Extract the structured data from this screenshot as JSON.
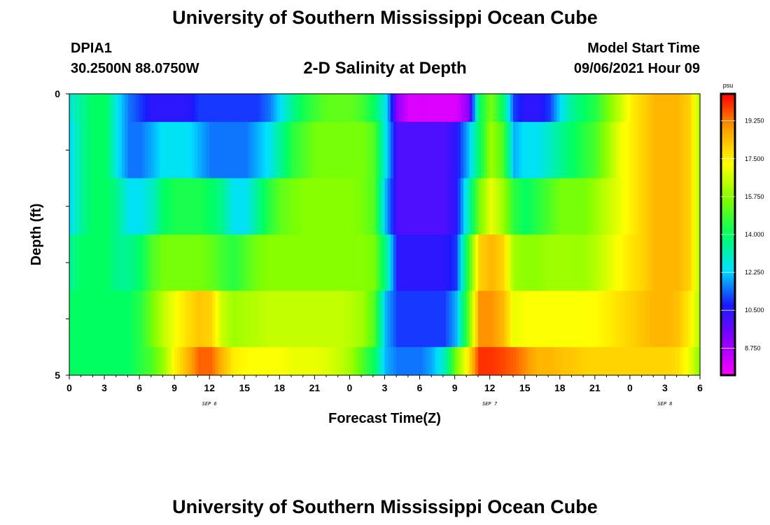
{
  "header": {
    "main_title": "University of Southern Mississippi Ocean Cube",
    "station_id": "DPIA1",
    "station_coords": "30.2500N  88.0750W",
    "plot_title": "2-D Salinity at Depth",
    "model_label": "Model Start Time",
    "model_time": "09/06/2021 Hour 09"
  },
  "footer": {
    "title": "University of Southern Mississippi Ocean Cube"
  },
  "chart_data": {
    "type": "heatmap",
    "xlabel": "Forecast Time(Z)",
    "ylabel": "Depth (ft)",
    "x_tick_labels": [
      "0",
      "3",
      "6",
      "9",
      "12",
      "15",
      "18",
      "21",
      "0",
      "3",
      "6",
      "9",
      "12",
      "15",
      "18",
      "21",
      "0",
      "3",
      "6"
    ],
    "date_labels": [
      {
        "label": "SEP 6",
        "hour": 12
      },
      {
        "label": "SEP 7",
        "hour": 36
      },
      {
        "label": "SEP 8",
        "hour": 51
      }
    ],
    "x_range_hours": [
      0,
      54
    ],
    "y_tick_labels": [
      "0",
      "5"
    ],
    "ylim": [
      0,
      5
    ],
    "unit": "psu",
    "colorbar_ticks": [
      "19.250",
      "17.500",
      "15.750",
      "14.000",
      "12.250",
      "10.500",
      "8.750"
    ],
    "colorbar_values": [
      19.25,
      17.5,
      15.75,
      14.0,
      12.25,
      10.5,
      8.75
    ],
    "value_range": [
      7.5,
      20.5
    ],
    "colormap": [
      "#ff00ff",
      "#8a00ff",
      "#1a1aff",
      "#00e0ff",
      "#00ff60",
      "#80ff00",
      "#ffff00",
      "#ffa000",
      "#ff0000"
    ],
    "hours": [
      0,
      1,
      2,
      3,
      4,
      5,
      6,
      7,
      8,
      9,
      10,
      11,
      12,
      13,
      14,
      15,
      16,
      17,
      18,
      19,
      20,
      21,
      22,
      23,
      24,
      25,
      26,
      27,
      28,
      29,
      30,
      31,
      32,
      33,
      34,
      35,
      36,
      37,
      38,
      39,
      40,
      41,
      42,
      43,
      44,
      45,
      46,
      47,
      48,
      49,
      50,
      51,
      52,
      53,
      54
    ],
    "depth_layers": [
      {
        "depth": 0,
        "values": [
          12.8,
          13.5,
          14.0,
          14.0,
          12.5,
          11.5,
          11.0,
          10.5,
          10.5,
          10.5,
          10.5,
          11.0,
          11.0,
          11.0,
          11.0,
          11.0,
          11.0,
          11.5,
          12.5,
          13.5,
          14.3,
          14.8,
          15.2,
          15.2,
          15.2,
          14.8,
          14.0,
          12.5,
          9.0,
          8.0,
          8.0,
          8.0,
          8.0,
          8.0,
          9.0,
          14.0,
          15.5,
          14.0,
          11.0,
          10.5,
          10.5,
          11.0,
          12.5,
          13.5,
          14.0,
          14.5,
          15.5,
          16.5,
          17.5,
          18.0,
          18.5,
          18.5,
          18.5,
          18.0,
          16.0
        ]
      },
      {
        "depth": 1,
        "values": [
          12.5,
          13.5,
          14.0,
          14.0,
          12.5,
          11.5,
          11.5,
          12.0,
          12.5,
          12.5,
          12.5,
          12.0,
          11.5,
          11.5,
          11.5,
          11.5,
          12.0,
          12.5,
          13.5,
          14.5,
          15.0,
          15.5,
          15.5,
          15.5,
          15.5,
          15.5,
          15.0,
          12.5,
          10.0,
          10.0,
          10.0,
          10.0,
          10.0,
          10.5,
          12.0,
          14.0,
          16.0,
          15.0,
          12.0,
          12.5,
          12.5,
          13.0,
          13.5,
          14.0,
          14.5,
          15.0,
          16.0,
          17.0,
          17.5,
          18.0,
          18.5,
          18.5,
          18.5,
          18.0,
          16.0
        ]
      },
      {
        "depth": 2,
        "values": [
          12.5,
          13.5,
          14.0,
          14.0,
          13.5,
          12.5,
          12.5,
          13.0,
          14.0,
          14.3,
          14.3,
          14.3,
          14.0,
          13.5,
          12.5,
          12.5,
          13.5,
          14.5,
          15.2,
          15.5,
          15.7,
          15.7,
          15.7,
          15.7,
          15.7,
          15.5,
          15.0,
          12.0,
          10.0,
          10.0,
          10.0,
          10.0,
          10.0,
          10.5,
          13.0,
          15.5,
          17.0,
          16.0,
          14.5,
          14.0,
          14.5,
          15.0,
          15.5,
          15.5,
          15.5,
          16.0,
          16.5,
          17.0,
          17.5,
          18.0,
          18.5,
          18.5,
          18.5,
          18.0,
          16.0
        ]
      },
      {
        "depth": 3,
        "values": [
          13.5,
          14.0,
          14.0,
          14.0,
          13.5,
          13.5,
          14.0,
          15.0,
          15.5,
          15.5,
          15.5,
          15.5,
          15.3,
          14.8,
          14.5,
          15.0,
          15.5,
          15.7,
          15.7,
          15.7,
          15.7,
          15.7,
          15.7,
          15.7,
          15.7,
          15.7,
          15.5,
          13.5,
          10.5,
          10.5,
          10.5,
          10.5,
          10.5,
          11.0,
          14.5,
          18.0,
          18.5,
          18.0,
          16.0,
          15.8,
          15.8,
          16.0,
          16.0,
          16.0,
          16.0,
          16.3,
          16.8,
          17.3,
          17.7,
          18.0,
          18.5,
          18.5,
          18.5,
          18.0,
          16.0
        ]
      },
      {
        "depth": 4,
        "values": [
          14.0,
          14.0,
          14.0,
          14.0,
          14.0,
          14.0,
          14.5,
          15.5,
          16.5,
          17.2,
          17.8,
          18.2,
          18.0,
          16.5,
          16.0,
          16.2,
          16.3,
          16.5,
          16.5,
          16.5,
          16.5,
          16.5,
          16.5,
          16.5,
          16.3,
          16.0,
          15.0,
          12.0,
          11.0,
          11.0,
          11.0,
          11.0,
          11.0,
          12.0,
          15.0,
          19.0,
          19.0,
          18.5,
          17.0,
          17.2,
          17.2,
          17.2,
          17.2,
          17.2,
          17.2,
          17.3,
          17.5,
          17.8,
          18.0,
          18.3,
          18.5,
          18.5,
          18.3,
          17.5,
          16.0
        ]
      },
      {
        "depth": 5,
        "values": [
          14.0,
          14.0,
          14.0,
          14.0,
          14.0,
          14.0,
          14.5,
          15.0,
          16.0,
          17.5,
          18.5,
          19.5,
          19.5,
          18.5,
          17.5,
          17.3,
          17.2,
          17.2,
          17.2,
          17.0,
          17.0,
          17.0,
          16.8,
          16.5,
          16.0,
          15.0,
          14.0,
          12.0,
          11.5,
          11.5,
          11.5,
          12.0,
          13.0,
          15.5,
          17.5,
          20.0,
          20.0,
          19.8,
          19.5,
          19.0,
          18.5,
          18.5,
          18.3,
          18.2,
          18.0,
          18.0,
          18.0,
          18.0,
          18.0,
          18.0,
          18.0,
          18.0,
          17.8,
          17.0,
          15.5
        ]
      }
    ]
  }
}
